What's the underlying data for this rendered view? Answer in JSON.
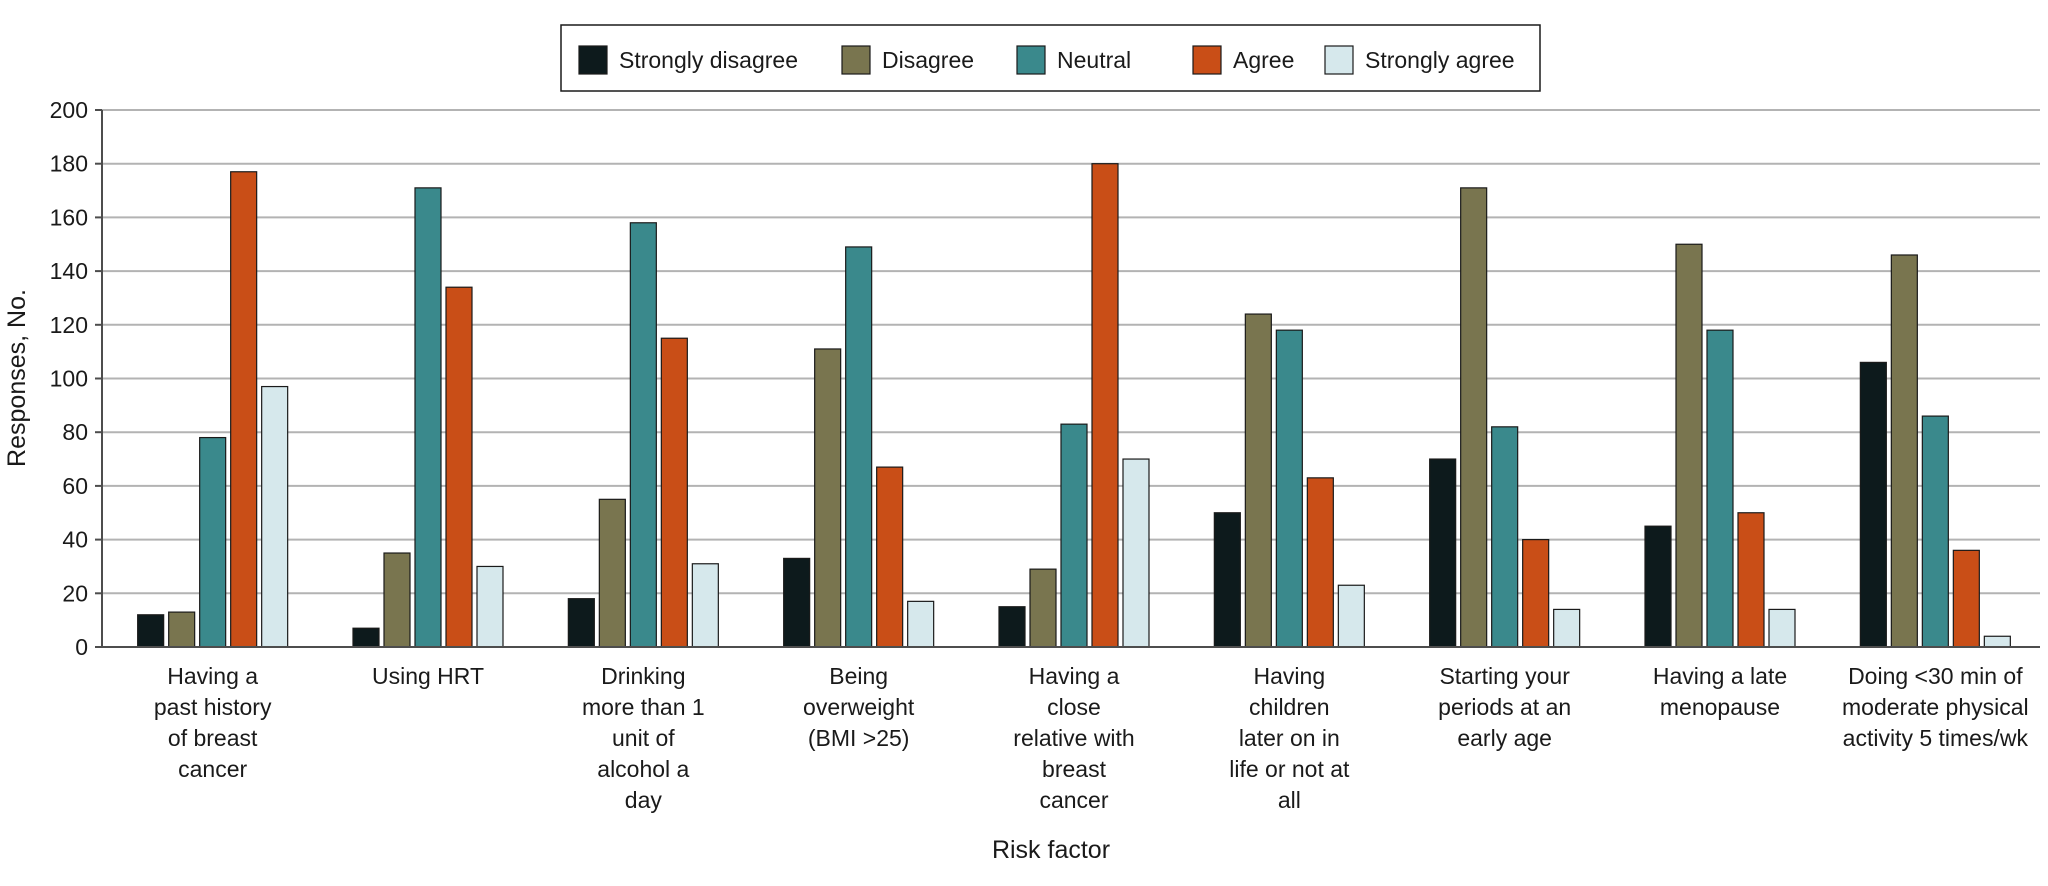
{
  "chart_data": {
    "type": "bar",
    "title": "",
    "xlabel": "Risk factor",
    "ylabel": "Responses, No.",
    "ylim": [
      0,
      200
    ],
    "yticks": [
      0,
      20,
      40,
      60,
      80,
      100,
      120,
      140,
      160,
      180,
      200
    ],
    "grid": true,
    "legend_position": "top-center",
    "categories": [
      [
        "Having a",
        "past history",
        "of breast",
        "cancer"
      ],
      [
        "Using HRT"
      ],
      [
        "Drinking",
        "more than 1",
        "unit of",
        "alcohol a",
        "day"
      ],
      [
        "Being",
        "overweight",
        "(BMI >25)"
      ],
      [
        "Having a",
        "close",
        "relative with",
        "breast",
        "cancer"
      ],
      [
        "Having",
        "children",
        "later on in",
        "life or not at",
        "all"
      ],
      [
        "Starting your",
        "periods at an",
        "early age"
      ],
      [
        "Having a late",
        "menopause"
      ],
      [
        "Doing <30 min of",
        "moderate physical",
        "activity 5 times/wk"
      ]
    ],
    "series": [
      {
        "name": "Strongly disagree",
        "color": "#0d1a1c",
        "values": [
          12,
          7,
          18,
          33,
          15,
          50,
          70,
          45,
          106
        ]
      },
      {
        "name": "Disagree",
        "color": "#79754f",
        "values": [
          13,
          35,
          55,
          111,
          29,
          124,
          171,
          150,
          146
        ]
      },
      {
        "name": "Neutral",
        "color": "#3a898c",
        "values": [
          78,
          171,
          158,
          149,
          83,
          118,
          82,
          118,
          86
        ]
      },
      {
        "name": "Agree",
        "color": "#c94e17",
        "values": [
          177,
          134,
          115,
          67,
          180,
          63,
          40,
          50,
          36
        ]
      },
      {
        "name": "Strongly agree",
        "color": "#d6e8ec",
        "values": [
          97,
          30,
          31,
          17,
          70,
          23,
          14,
          14,
          4
        ]
      }
    ]
  }
}
